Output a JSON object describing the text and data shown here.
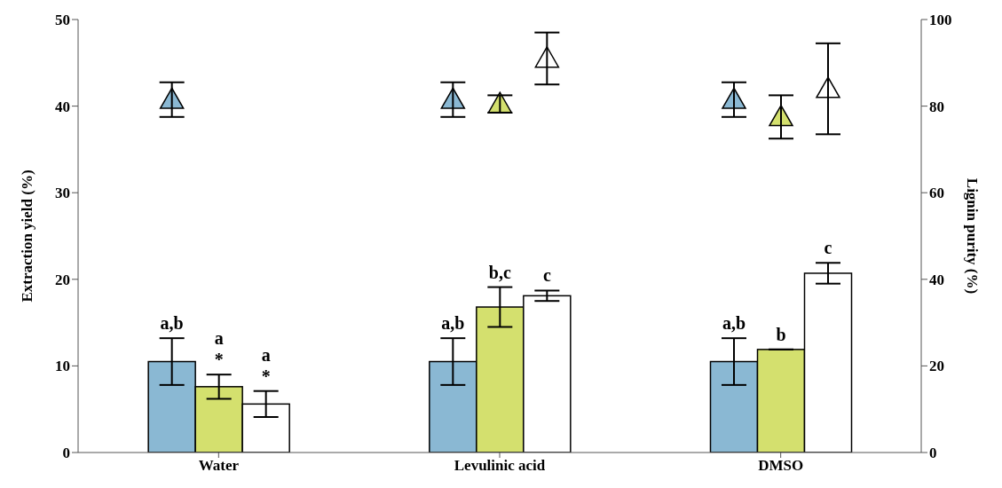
{
  "chart_data": {
    "type": "bar",
    "categories": [
      "Water",
      "Levulinic acid",
      "DMSO"
    ],
    "ylabel": "Extraction yield (%)",
    "y2label": "Lignin purity (%)",
    "ylim": [
      0,
      50
    ],
    "yticks": [
      0,
      10,
      20,
      30,
      40,
      50
    ],
    "y2lim": [
      0,
      100
    ],
    "y2ticks": [
      0,
      20,
      40,
      60,
      80,
      100
    ],
    "grid": false,
    "legend": false,
    "series": [
      {
        "color": "#8ab8d3",
        "values": [
          10.5,
          10.5,
          10.5
        ],
        "errors": [
          2.7,
          2.7,
          2.7
        ],
        "value_labels": [
          "a,b",
          "a,b",
          "a,b"
        ]
      },
      {
        "color": "#d4e06e",
        "values": [
          7.6,
          16.8,
          11.9
        ],
        "errors": [
          1.4,
          2.3,
          0
        ],
        "value_labels": [
          "a\n*",
          "b,c",
          "b"
        ]
      },
      {
        "color": "#ffffff",
        "values": [
          5.6,
          18.1,
          20.7
        ],
        "errors": [
          1.5,
          0.6,
          1.2
        ],
        "value_labels": [
          "a\n*",
          "c",
          "c"
        ]
      },
      {
        "type": "scatter",
        "axis": "y2",
        "marker": "triangle",
        "color": "#8ab8d3",
        "x": [
          "Water",
          "Levulinic acid",
          "DMSO"
        ],
        "values": [
          81.5,
          81.5,
          81.5
        ],
        "errors": [
          4,
          4,
          4
        ]
      },
      {
        "type": "scatter",
        "axis": "y2",
        "marker": "triangle",
        "color": "#d4e06e",
        "x": [
          "Water",
          "Levulinic acid",
          "DMSO"
        ],
        "values": [
          null,
          80.5,
          77.5
        ],
        "errors": [
          null,
          2,
          5
        ]
      },
      {
        "type": "scatter",
        "axis": "y2",
        "marker": "triangle",
        "color": "#ffffff",
        "x": [
          "Water",
          "Levulinic acid",
          "DMSO"
        ],
        "values": [
          null,
          91,
          84
        ],
        "errors": [
          null,
          6,
          10.5
        ]
      }
    ]
  }
}
